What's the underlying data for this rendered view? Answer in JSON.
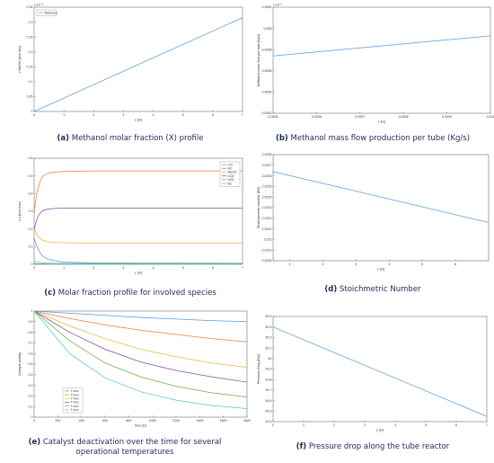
{
  "captions": {
    "a": {
      "letter": "(a)",
      "text": " Methanol molar fraction (X) profile"
    },
    "b": {
      "letter": "(b)",
      "text": " Methanol mass flow production per tube (Kg/s)"
    },
    "c": {
      "letter": "(c)",
      "text": " Molar fraction profile for involved species"
    },
    "d": {
      "letter": "(d)",
      "text": " Stoichmetric Number"
    },
    "e": {
      "letter": "(e)",
      "text": " Catalyst deactivation over the time for several operational temperatures"
    },
    "f": {
      "letter": "(f)",
      "text": " Pressure drop along the tube reactor"
    }
  },
  "chart_data": [
    {
      "id": "a",
      "type": "line",
      "xlabel": "z [m]",
      "ylabel": "x MeOH [mol frac]",
      "xlim": [
        0,
        7
      ],
      "ylim": [
        0,
        0.35
      ],
      "xticks": [
        0,
        1,
        2,
        3,
        4,
        5,
        6,
        7
      ],
      "yticks": [
        0,
        0.05,
        0.1,
        0.15,
        0.2,
        0.25,
        0.3,
        0.35
      ],
      "ytick_labels": [
        "0",
        "0.05",
        "0.1",
        "0.15",
        "0.2",
        "0.25",
        "0.3",
        "0.35"
      ],
      "exponent_label": "x 10⁻³",
      "legend": [
        "Methanol"
      ],
      "legend_position": "top-left",
      "colors": [
        "#5b9bd5"
      ],
      "series": [
        {
          "name": "Methanol",
          "x": [
            0,
            7
          ],
          "y": [
            0,
            0.315
          ]
        }
      ]
    },
    {
      "id": "b",
      "type": "line",
      "xlabel": "z [m]",
      "ylabel": "Methanol mass flow per tube [kg/s]",
      "xlim": [
        0.0005,
        0.001
      ],
      "ylim": [
        0.0052,
        0.0062
      ],
      "xticks": [
        0.0005,
        0.0006,
        0.0007,
        0.0008,
        0.0009,
        0.001
      ],
      "xtick_labels": [
        "0.0005",
        "0.0006",
        "0.0007",
        "0.0008",
        "0.0009",
        "0.001"
      ],
      "yticks": [
        0.0052,
        0.0054,
        0.0056,
        0.0058,
        0.006,
        0.0062
      ],
      "ytick_labels": [
        "0.0052",
        "0.0054",
        "0.0056",
        "0.0058",
        "0.006",
        "0.0062"
      ],
      "exponent_label": "x 10⁻³",
      "colors": [
        "#5b9bd5"
      ],
      "series": [
        {
          "x": [
            0.0005,
            0.001
          ],
          "y": [
            0.00574,
            0.00593
          ]
        }
      ]
    },
    {
      "id": "c",
      "type": "line",
      "xlabel": "z [m]",
      "ylabel": "x k [mol frac]",
      "xlim": [
        0,
        7
      ],
      "ylim": [
        0,
        0.6
      ],
      "xticks": [
        0,
        1,
        2,
        3,
        4,
        5,
        6,
        7
      ],
      "yticks": [
        0,
        0.1,
        0.2,
        0.3,
        0.4,
        0.5,
        0.6
      ],
      "ytick_labels": [
        "0",
        "0.1",
        "0.2",
        "0.3",
        "0.4",
        "0.5",
        "0.6"
      ],
      "legend": [
        "CO",
        "H2",
        "MeOH",
        "CO2",
        "H2O",
        "N2"
      ],
      "legend_position": "top-right",
      "colors": [
        "#5b9bd5",
        "#ed7d31",
        "#e8b931",
        "#7e4fa0",
        "#70ad47",
        "#4fc3d9"
      ],
      "series": [
        {
          "name": "CO",
          "x": [
            0,
            0.1,
            0.2,
            0.3,
            0.45,
            0.7,
            1,
            1.5,
            2,
            7
          ],
          "y": [
            0.15,
            0.1,
            0.065,
            0.045,
            0.03,
            0.02,
            0.013,
            0.01,
            0.008,
            0.006
          ]
        },
        {
          "name": "H2",
          "x": [
            0,
            0.1,
            0.2,
            0.3,
            0.45,
            0.7,
            1,
            1.5,
            2,
            7
          ],
          "y": [
            0.3,
            0.41,
            0.47,
            0.5,
            0.515,
            0.522,
            0.525,
            0.527,
            0.528,
            0.528
          ]
        },
        {
          "name": "MeOH",
          "x": [
            0,
            0.1,
            0.2,
            0.3,
            0.45,
            0.7,
            1,
            1.5,
            2,
            7
          ],
          "y": [
            0.2,
            0.165,
            0.145,
            0.135,
            0.128,
            0.124,
            0.122,
            0.121,
            0.12,
            0.12
          ]
        },
        {
          "name": "CO2",
          "x": [
            0,
            0.1,
            0.2,
            0.3,
            0.45,
            0.7,
            1,
            1.5,
            2,
            7
          ],
          "y": [
            0.2,
            0.26,
            0.29,
            0.305,
            0.312,
            0.316,
            0.318,
            0.318,
            0.318,
            0.318
          ]
        },
        {
          "name": "H2O",
          "x": [
            0,
            0.1,
            0.2,
            0.3,
            0.45,
            0.7,
            1,
            1.5,
            2,
            7
          ],
          "y": [
            0.005,
            0.004,
            0.003,
            0.003,
            0.002,
            0.002,
            0.002,
            0.002,
            0.002,
            0.002
          ]
        },
        {
          "name": "N2",
          "x": [
            0,
            0.1,
            0.2,
            0.3,
            0.45,
            0.7,
            1,
            1.5,
            2,
            7
          ],
          "y": [
            0.02,
            0.015,
            0.011,
            0.009,
            0.007,
            0.006,
            0.005,
            0.005,
            0.005,
            0.005
          ]
        }
      ]
    },
    {
      "id": "d",
      "type": "line",
      "xlabel": "z [m]",
      "ylabel": "Stoichiometric number [SN]",
      "xlim": [
        0.5,
        7
      ],
      "ylim": [
        2.0218,
        2.0228
      ],
      "xticks": [
        1,
        2,
        3,
        4,
        5,
        6
      ],
      "yticks": [
        2.0218,
        2.0219,
        2.022,
        2.0221,
        2.0222,
        2.0223,
        2.0224,
        2.0225,
        2.0226,
        2.0227,
        2.0228
      ],
      "ytick_labels": [
        "2.0218",
        "2.0219",
        "2.022",
        "2.0221",
        "2.0222",
        "2.0223",
        "2.0224",
        "2.0225",
        "2.0226",
        "2.0227",
        "2.0228"
      ],
      "colors": [
        "#5b9bd5"
      ],
      "series": [
        {
          "x": [
            0.5,
            7
          ],
          "y": [
            2.02264,
            2.02216
          ]
        }
      ]
    },
    {
      "id": "e",
      "type": "line",
      "xlabel": "time [h]",
      "ylabel": "Catalyst activity",
      "xlim": [
        0,
        1800
      ],
      "ylim": [
        0,
        1
      ],
      "xticks": [
        0,
        200,
        400,
        600,
        800,
        1000,
        1200,
        1400,
        1600,
        1800
      ],
      "yticks": [
        0,
        0.1,
        0.2,
        0.3,
        0.4,
        0.5,
        0.6,
        0.7,
        0.8,
        0.9,
        1
      ],
      "ytick_labels": [
        "0",
        "0.1",
        "0.2",
        "0.3",
        "0.4",
        "0.5",
        "0.6",
        "0.7",
        "0.8",
        "0.9",
        "1"
      ],
      "legend": [
        "T=xxx",
        "T=xxx",
        "T=xxx",
        "T=xxx",
        "T=xxx",
        "T=xxx"
      ],
      "legend_position": "bottom-left",
      "colors": [
        "#5b9bd5",
        "#ed7d31",
        "#e8b931",
        "#7e4fa0",
        "#70ad47",
        "#4fc3d9"
      ],
      "series": [
        {
          "name": "T=xxx",
          "x": [
            0,
            300,
            600,
            900,
            1200,
            1500,
            1800
          ],
          "y": [
            1,
            0.98,
            0.96,
            0.94,
            0.925,
            0.91,
            0.9
          ]
        },
        {
          "name": "T=xxx",
          "x": [
            0,
            300,
            600,
            900,
            1200,
            1500,
            1800
          ],
          "y": [
            1,
            0.93,
            0.87,
            0.82,
            0.78,
            0.74,
            0.71
          ]
        },
        {
          "name": "T=xxx",
          "x": [
            0,
            300,
            600,
            900,
            1200,
            1500,
            1800
          ],
          "y": [
            1,
            0.86,
            0.74,
            0.64,
            0.57,
            0.51,
            0.47
          ]
        },
        {
          "name": "T=xxx",
          "x": [
            0,
            300,
            600,
            900,
            1200,
            1500,
            1800
          ],
          "y": [
            1,
            0.8,
            0.64,
            0.52,
            0.44,
            0.38,
            0.33
          ]
        },
        {
          "name": "T=xxx",
          "x": [
            0,
            300,
            600,
            900,
            1200,
            1500,
            1800
          ],
          "y": [
            1,
            0.72,
            0.51,
            0.38,
            0.29,
            0.23,
            0.19
          ]
        },
        {
          "name": "T=xxx",
          "x": [
            0,
            300,
            600,
            900,
            1200,
            1500,
            1800
          ],
          "y": [
            1,
            0.6,
            0.37,
            0.24,
            0.16,
            0.11,
            0.08
          ]
        }
      ]
    },
    {
      "id": "f",
      "type": "line",
      "xlabel": "z [m]",
      "ylabel": "Pressure Drop [Bar]",
      "xlim": [
        0,
        7
      ],
      "ylim": [
        49.4,
        50.4
      ],
      "xticks": [
        0,
        1,
        2,
        3,
        4,
        5,
        6,
        7
      ],
      "yticks": [
        49.4,
        49.5,
        49.6,
        49.7,
        49.8,
        49.9,
        50,
        50.1,
        50.2,
        50.3,
        50.4
      ],
      "ytick_labels": [
        "49.4",
        "49.5",
        "49.6",
        "49.7",
        "49.8",
        "49.9",
        "50",
        "50.1",
        "50.2",
        "50.3",
        "50.4"
      ],
      "colors": [
        "#5b9bd5"
      ],
      "series": [
        {
          "x": [
            0,
            7
          ],
          "y": [
            50.3,
            49.45
          ]
        }
      ]
    }
  ]
}
